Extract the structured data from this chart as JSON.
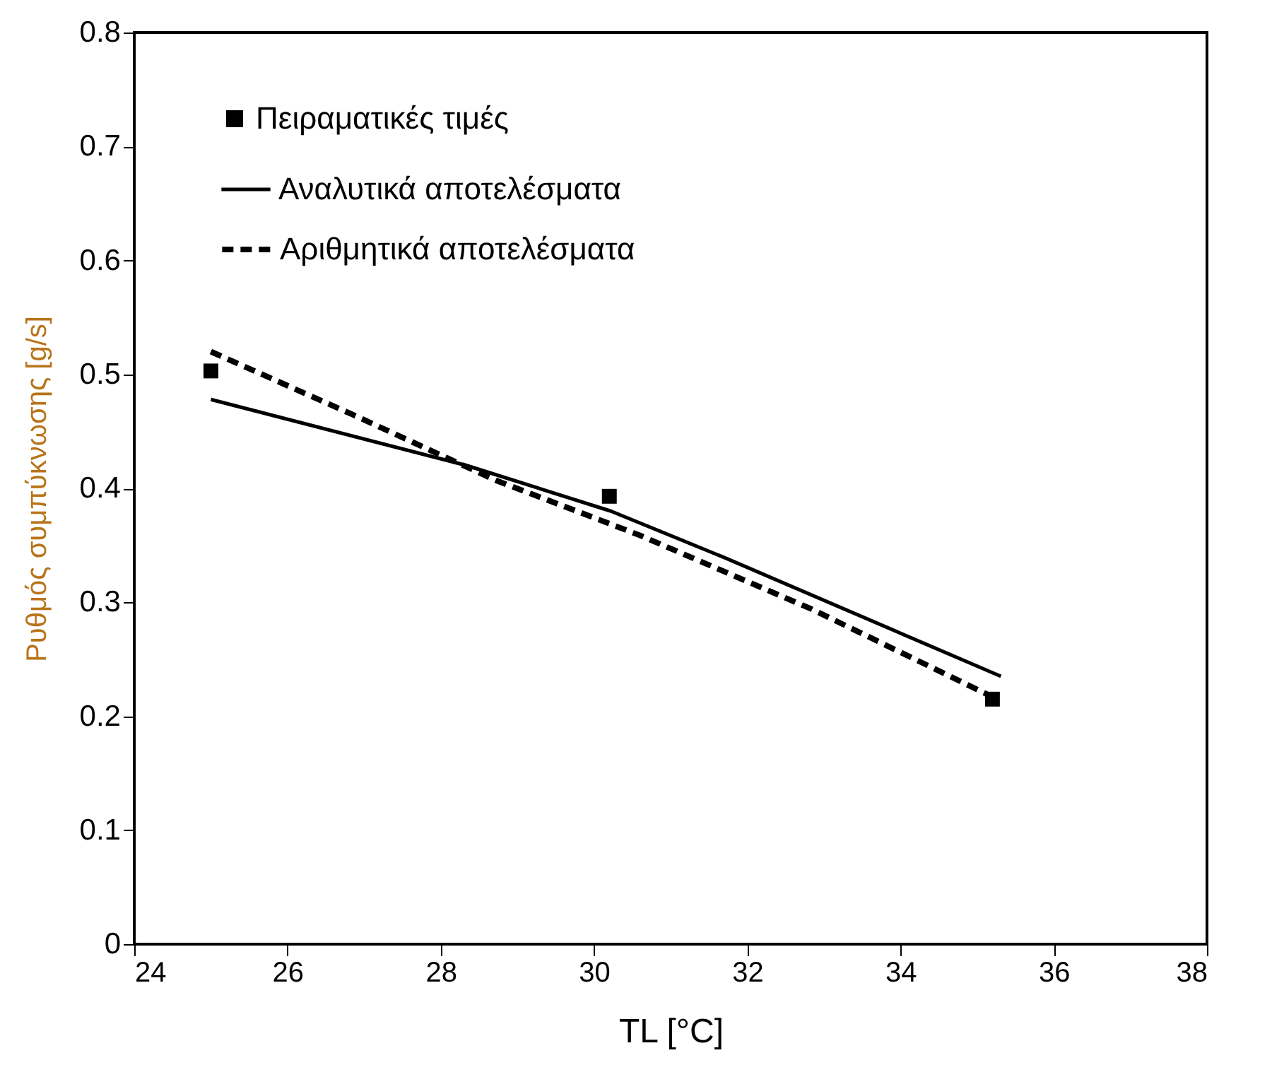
{
  "chart_data": {
    "type": "line",
    "xlabel": "TL [°C]",
    "ylabel": "Ρυθμός συμπύκνωσης  [g/s]",
    "xlim": [
      24,
      38
    ],
    "xticks": [
      24,
      26,
      28,
      30,
      32,
      34,
      36,
      38
    ],
    "ylim": [
      0,
      0.8
    ],
    "yticks": [
      0,
      0.1,
      0.2,
      0.3,
      0.4,
      0.5,
      0.6,
      0.7,
      0.8
    ],
    "grid": false,
    "legend": "top",
    "series": [
      {
        "name": "Πειραματικές τιμές",
        "type": "scatter",
        "marker": "square",
        "color": "#000000",
        "x": [
          25.0,
          30.2,
          35.2
        ],
        "values": [
          0.503,
          0.393,
          0.215
        ]
      },
      {
        "name": "Αναλυτικά αποτελέσματα",
        "type": "line",
        "line_style": "solid",
        "color": "#000000",
        "x": [
          25.0,
          28.34,
          30.22,
          31.71,
          35.31
        ],
        "values": [
          0.478,
          0.42,
          0.38,
          0.339,
          0.235
        ]
      },
      {
        "name": "Αριθμητικά αποτελέσματα",
        "type": "line",
        "line_style": "dashed",
        "color": "#000000",
        "x": [
          25.0,
          26.84,
          28.72,
          30.59,
          32.84,
          35.23
        ],
        "values": [
          0.52,
          0.465,
          0.407,
          0.359,
          0.294,
          0.216
        ]
      }
    ]
  }
}
